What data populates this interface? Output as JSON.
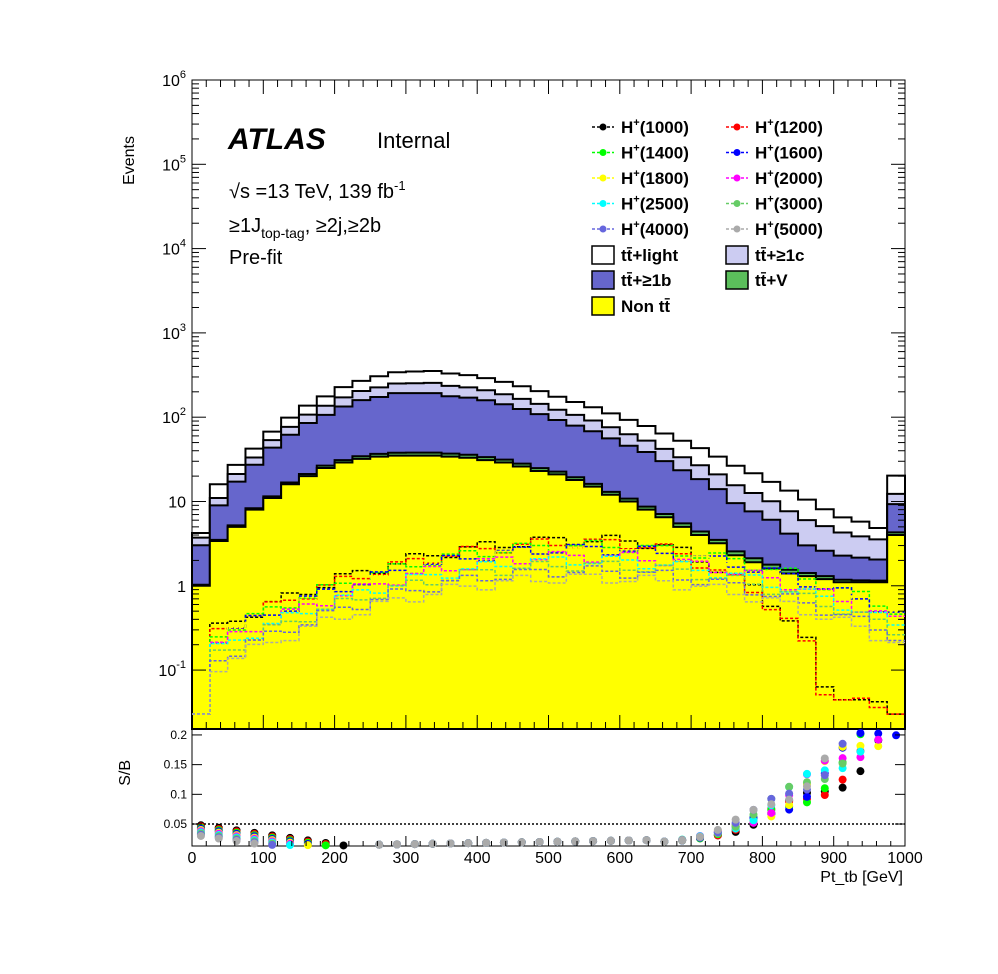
{
  "annotations": {
    "experiment": "ATLAS",
    "status": "Internal",
    "energy_base": "√s =13 TeV, 139 fb",
    "energy_sup": "-1",
    "region_pre": "≥1J",
    "region_sub": "top-tag",
    "region_post": ", ≥2j,≥2b",
    "fit": "Pre-fit"
  },
  "colors": {
    "nontt": "#ffff00",
    "ttV": "#5bbf5b",
    "ttb": "#6666cc",
    "ttc": "#ccccf2",
    "ttlight": "#ffffff"
  },
  "chart_data": [
    {
      "type": "area",
      "subtype": "stacked-histogram",
      "ylabel": "Events",
      "yscale": "log",
      "ylim": [
        0.02,
        1000000
      ],
      "xlim": [
        0,
        1000
      ],
      "bins": [
        0,
        25,
        50,
        75,
        100,
        125,
        150,
        175,
        200,
        225,
        250,
        275,
        300,
        325,
        350,
        375,
        400,
        425,
        450,
        475,
        500,
        525,
        550,
        575,
        600,
        625,
        650,
        675,
        700,
        725,
        750,
        775,
        800,
        825,
        850,
        875,
        900,
        925,
        950,
        975,
        1000
      ],
      "y_tick_labels": [
        "10^-1",
        "1",
        "10",
        "10^2",
        "10^3",
        "10^4",
        "10^5",
        "10^6"
      ],
      "stack": [
        {
          "name": "Non tt̄",
          "color": "#ffff00",
          "values": [
            1,
            3.4,
            5,
            8,
            11,
            16,
            20,
            25,
            29,
            32,
            34,
            35,
            35,
            35,
            34,
            33,
            31,
            29,
            26,
            23,
            21,
            18,
            15,
            12,
            10,
            8,
            6.5,
            5,
            4,
            3.2,
            2.3,
            1.9,
            1.6,
            1.4,
            1.3,
            1.2,
            1.1,
            1.1,
            1.1,
            4
          ]
        },
        {
          "name": "tt̄+V",
          "color": "#5bbf5b",
          "values": [
            0.03,
            0.1,
            0.2,
            0.3,
            0.5,
            0.8,
            1.2,
            1.6,
            2,
            2.4,
            2.7,
            2.9,
            3,
            3,
            2.9,
            2.8,
            2.6,
            2.4,
            2.1,
            1.9,
            1.6,
            1.4,
            1.2,
            1,
            0.8,
            0.7,
            0.6,
            0.5,
            0.4,
            0.3,
            0.26,
            0.22,
            0.18,
            0.15,
            0.12,
            0.1,
            0.08,
            0.06,
            0.05,
            0.3
          ]
        },
        {
          "name": "tt̄+≥1b",
          "color": "#6666cc",
          "values": [
            2,
            5.5,
            12,
            19,
            32,
            45,
            64,
            80,
            103,
            125,
            137,
            155,
            155,
            155,
            140,
            135,
            125,
            111,
            97,
            84,
            70,
            60,
            52,
            43,
            35,
            30,
            23,
            18,
            14,
            10.5,
            7,
            5.5,
            4.3,
            2.6,
            1.6,
            1.3,
            1.1,
            1,
            0.9,
            5
          ]
        },
        {
          "name": "tt̄+≥1c",
          "color": "#ccccf2",
          "values": [
            0.7,
            2,
            4,
            6,
            10,
            15,
            22,
            30,
            38,
            45,
            52,
            58,
            60,
            62,
            58,
            55,
            50,
            45,
            40,
            35,
            30,
            27,
            23,
            20,
            17,
            14,
            12,
            10,
            8.5,
            7,
            6,
            5,
            4,
            3.5,
            3,
            2.5,
            2,
            1.7,
            1.5,
            3
          ]
        },
        {
          "name": "tt̄+light",
          "color": "#ffffff",
          "values": [
            0.5,
            5,
            6,
            9,
            14,
            22,
            30,
            40,
            55,
            65,
            80,
            90,
            95,
            98,
            95,
            90,
            82,
            75,
            68,
            60,
            52,
            45,
            40,
            35,
            30,
            26,
            22,
            19,
            16,
            13,
            11,
            9,
            7,
            5.8,
            4.5,
            3,
            2.2,
            1.9,
            1.3,
            8
          ]
        }
      ],
      "signals": [
        {
          "name": "H+(1000)",
          "color": "#000000"
        },
        {
          "name": "H+(1200)",
          "color": "#ff0000"
        },
        {
          "name": "H+(1400)",
          "color": "#00ff00"
        },
        {
          "name": "H+(1600)",
          "color": "#0000ff"
        },
        {
          "name": "H+(1800)",
          "color": "#ffff00"
        },
        {
          "name": "H+(2000)",
          "color": "#ff00ff"
        },
        {
          "name": "H+(2500)",
          "color": "#00ffff"
        },
        {
          "name": "H+(3000)",
          "color": "#66cc66"
        },
        {
          "name": "H+(4000)",
          "color": "#6666dd"
        },
        {
          "name": "H+(5000)",
          "color": "#aaaaaa"
        }
      ]
    },
    {
      "type": "scatter",
      "ylabel": "S/B",
      "xlabel": "Pt_tb [GeV]",
      "xlim": [
        0,
        1000
      ],
      "ylim": [
        0.013,
        0.21
      ],
      "reference_line": 0.05,
      "x_tick_labels": [
        "0",
        "100",
        "200",
        "300",
        "400",
        "500",
        "600",
        "700",
        "800",
        "900",
        "1000"
      ],
      "y_tick_labels": [
        "0.05",
        "0.1",
        "0.15",
        "0.2"
      ]
    }
  ]
}
